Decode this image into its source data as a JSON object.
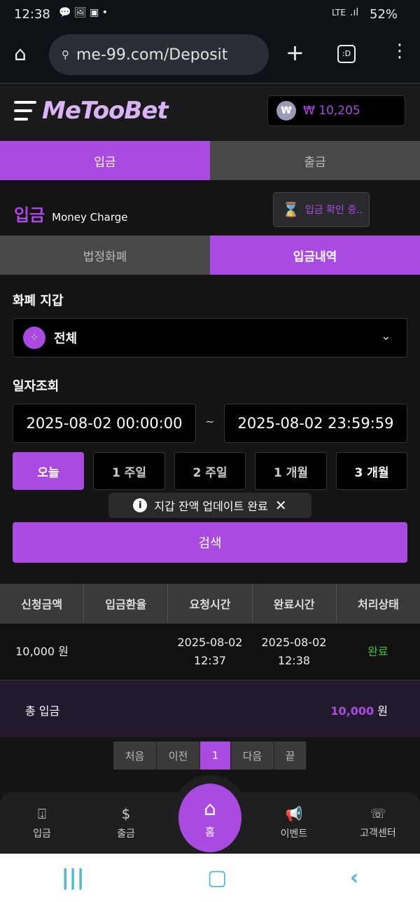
{
  "status_bar": {
    "time": "12:38",
    "battery": "52%",
    "network": "LTE"
  },
  "browser": {
    "url": "me-99.com/Deposit"
  },
  "header": {
    "logo": "MeTooBet",
    "balance": "₩ 10,205",
    "coin_symbol": "₩"
  },
  "main_tabs": [
    {
      "label": "입금"
    },
    {
      "label": "출금"
    }
  ],
  "title": {
    "main": "입금",
    "sub": "Money Charge",
    "pending": "입금 확인 중.."
  },
  "sub_tabs": [
    {
      "label": "법정화폐"
    },
    {
      "label": "입금내역"
    }
  ],
  "wallet": {
    "label": "화폐 지갑",
    "selected": "전체"
  },
  "date": {
    "label": "일자조회",
    "from": "2025-08-02 00:00:00",
    "sep": "~",
    "to": "2025-08-02 23:59:59"
  },
  "range_buttons": [
    {
      "label": "오늘"
    },
    {
      "label": "1 주일"
    },
    {
      "label": "2 주일"
    },
    {
      "label": "1 개월"
    },
    {
      "label": "3 개월"
    }
  ],
  "toast": {
    "message": "지갑 잔액 업데이트 완료",
    "close": "✕"
  },
  "search_label": "검색",
  "table": {
    "headers": [
      "신청금액",
      "입금환율",
      "요청시간",
      "완료시간",
      "처리상태"
    ],
    "rows": [
      {
        "amount": "10,000 원",
        "rate": "",
        "requested": "2025-08-02",
        "requested_time": "12:37",
        "completed": "2025-08-02",
        "completed_time": "12:38",
        "status": "완료"
      }
    ]
  },
  "total": {
    "label": "총 입금",
    "value": "10,000",
    "unit": "원"
  },
  "pagination": [
    "처음",
    "이전",
    "1",
    "다음",
    "끝"
  ],
  "bottom_nav": [
    {
      "label": "입금"
    },
    {
      "label": "출금"
    },
    {
      "label": "홈"
    },
    {
      "label": "이벤트"
    },
    {
      "label": "고객센터"
    }
  ],
  "colors": {
    "accent": "#a94ae0",
    "success": "#3fc23f"
  }
}
